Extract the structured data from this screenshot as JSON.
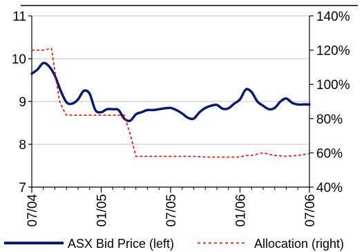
{
  "chart_data": {
    "type": "line",
    "title": "",
    "left_axis": {
      "min": 7,
      "max": 11,
      "ticks": [
        "7",
        "8",
        "9",
        "10",
        "11"
      ]
    },
    "right_axis": {
      "min": 0.4,
      "max": 1.4,
      "ticks": [
        "40%",
        "60%",
        "80%",
        "100%",
        "120%",
        "140%"
      ]
    },
    "x_axis": {
      "start": "2004-07",
      "end": "2006-07",
      "tick_labels": [
        "07/04",
        "01/05",
        "07/05",
        "01/06",
        "07/06"
      ],
      "tick_positions_months": [
        0,
        6,
        12,
        18,
        24
      ]
    },
    "grid": "horizontal",
    "legend_position": "bottom",
    "series": [
      {
        "name": "ASX Bid Price (left)",
        "axis": "left",
        "color": "#0a1a6e",
        "style": "solid",
        "x_months": [
          0,
          0.5,
          1,
          1.5,
          2,
          2.5,
          3,
          3.5,
          4,
          4.5,
          5,
          5.5,
          6,
          6.5,
          7,
          7.5,
          8,
          8.5,
          9,
          9.5,
          10,
          10.5,
          11,
          11.5,
          12,
          12.5,
          13,
          13.5,
          14,
          14.5,
          15,
          15.5,
          16,
          16.5,
          17,
          17.5,
          18,
          18.5,
          19,
          19.5,
          20,
          20.5,
          21,
          21.5,
          22,
          22.5,
          23,
          23.5,
          24
        ],
        "values": [
          9.65,
          9.75,
          9.9,
          9.82,
          9.6,
          9.25,
          8.98,
          8.95,
          9.05,
          9.25,
          9.18,
          8.8,
          8.75,
          8.82,
          8.82,
          8.8,
          8.6,
          8.55,
          8.7,
          8.75,
          8.8,
          8.8,
          8.82,
          8.84,
          8.85,
          8.8,
          8.72,
          8.62,
          8.6,
          8.75,
          8.85,
          8.9,
          8.92,
          8.83,
          8.84,
          8.95,
          9.05,
          9.28,
          9.22,
          9.0,
          8.9,
          8.82,
          8.85,
          9.0,
          9.07,
          8.97,
          8.93,
          8.93,
          8.93
        ]
      },
      {
        "name": "Allocation (right)",
        "axis": "right",
        "color": "#ff0000",
        "style": "dashed",
        "x_months": [
          0,
          1,
          1.7,
          2.1,
          2.4,
          2.9,
          3,
          3.5,
          4,
          6,
          7,
          8,
          8.5,
          9,
          10,
          11,
          12,
          13,
          14,
          15,
          16,
          17,
          18,
          18.5,
          19,
          20,
          21,
          22,
          23,
          24
        ],
        "values": [
          1.2,
          1.2,
          1.21,
          1.03,
          0.9,
          0.83,
          0.82,
          0.82,
          0.82,
          0.82,
          0.82,
          0.82,
          0.71,
          0.58,
          0.58,
          0.58,
          0.58,
          0.58,
          0.58,
          0.575,
          0.575,
          0.575,
          0.575,
          0.585,
          0.585,
          0.6,
          0.585,
          0.58,
          0.585,
          0.595
        ]
      }
    ]
  }
}
